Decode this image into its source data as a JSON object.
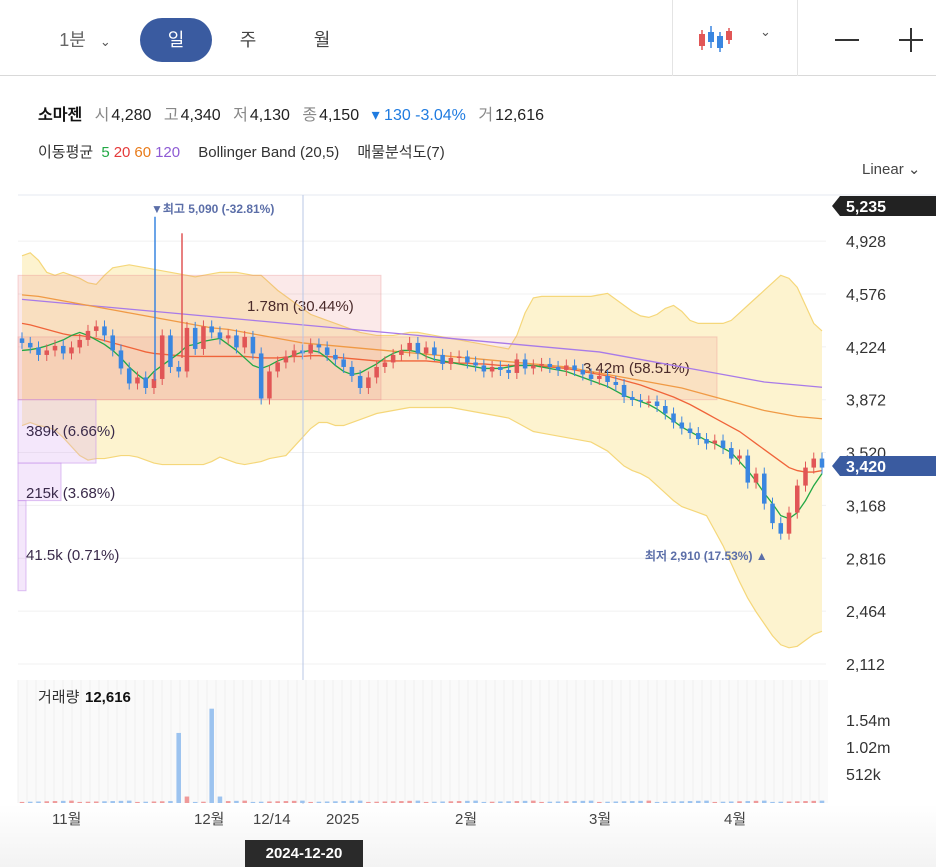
{
  "toolbar": {
    "interval": "1분",
    "periods": [
      "일",
      "주",
      "월"
    ],
    "active_period": "일",
    "chart_type_icon": "candlestick-icon",
    "zoom_out_icon": "minus-icon",
    "zoom_in_icon": "plus-icon"
  },
  "quote": {
    "name": "소마젠",
    "open_label": "시",
    "open": "4,280",
    "high_label": "고",
    "high": "4,340",
    "low_label": "저",
    "low": "4,130",
    "close_label": "종",
    "close": "4,150",
    "change": "▾ 130 -3.04%",
    "volume_label": "거",
    "volume": "12,616"
  },
  "indicators": {
    "ma_label": "이동평균",
    "ma5": "5",
    "ma20": "20",
    "ma60": "60",
    "ma120": "120",
    "bollinger": "Bollinger Band (20,5)",
    "volume_profile": "매물분석도(7)"
  },
  "scale_label": "Linear",
  "colors": {
    "up": "#e15656",
    "down": "#3a86e0",
    "ma5": "#22a845",
    "ma20": "#f0643a",
    "ma60": "#f09a45",
    "ma120": "#a87ae8",
    "band": "#fdf3cf",
    "band_line": "#f5d77a",
    "price_tag": "#3a5ba0",
    "crosshair": "#b9c7e6"
  },
  "chart_data": {
    "type": "candlestick",
    "ylim": [
      2112,
      5235
    ],
    "y_ticks": [
      "4,928",
      "4,576",
      "4,224",
      "3,872",
      "3,520",
      "3,168",
      "2,816",
      "2,464",
      "2,112"
    ],
    "current_high_tag": "5,235",
    "current_price_tag": "3,420",
    "x_labels": [
      "11월",
      "12월",
      "12/14",
      "2025",
      "2월",
      "3월",
      "4월"
    ],
    "crosshair_date": "2024-12-20",
    "max_annotation": "▼최고 5,090 (-32.81%)",
    "min_annotation": "최저 2,910 (17.53%) ▲",
    "volume_profile": [
      {
        "label": "1.78m (30.44%)",
        "price_from": 3872,
        "price_to": 4700
      },
      {
        "label": "3.42m (58.51%)",
        "price_from": 3872,
        "price_to": 4290
      },
      {
        "label": "389k (6.66%)",
        "price_from": 3450,
        "price_to": 3872
      },
      {
        "label": "215k (3.68%)",
        "price_from": 3200,
        "price_to": 3450
      },
      {
        "label": "41.5k (0.71%)",
        "price_from": 2600,
        "price_to": 3200
      }
    ],
    "closes": [
      4250,
      4220,
      4170,
      4200,
      4230,
      4180,
      4220,
      4270,
      4330,
      4360,
      4300,
      4200,
      4080,
      3980,
      4020,
      3950,
      4010,
      4300,
      4090,
      4060,
      4350,
      4210,
      4360,
      4320,
      4280,
      4300,
      4220,
      4290,
      4180,
      3880,
      4060,
      4120,
      4160,
      4200,
      4180,
      4240,
      4220,
      4170,
      4140,
      4090,
      4030,
      3950,
      4020,
      4090,
      4120,
      4170,
      4200,
      4250,
      4180,
      4220,
      4170,
      4110,
      4150,
      4160,
      4120,
      4100,
      4060,
      4090,
      4070,
      4050,
      4140,
      4080,
      4100,
      4110,
      4090,
      4070,
      4100,
      4070,
      4040,
      4010,
      4030,
      3990,
      3970,
      3890,
      3870,
      3860,
      3860,
      3830,
      3780,
      3720,
      3680,
      3650,
      3610,
      3580,
      3600,
      3550,
      3480,
      3500,
      3320,
      3380,
      3180,
      3050,
      2980,
      3120,
      3300,
      3420,
      3480,
      3420
    ],
    "ma5": [
      4200,
      4205,
      4215,
      4230,
      4250,
      4270,
      4300,
      4320,
      4300,
      4270,
      4240,
      4200,
      4150,
      4090,
      4040,
      4000,
      4060,
      4100,
      4140,
      4180,
      4230,
      4240,
      4260,
      4270,
      4280,
      4240,
      4200,
      4150,
      4100,
      4080,
      4100,
      4130,
      4150,
      4170,
      4190,
      4200,
      4190,
      4150,
      4100,
      4060,
      4040,
      4050,
      4080,
      4110,
      4150,
      4180,
      4200,
      4200,
      4190,
      4160,
      4140,
      4130,
      4120,
      4110,
      4100,
      4090,
      4080,
      4080,
      4080,
      4090,
      4100,
      4100,
      4100,
      4090,
      4080,
      4070,
      4060,
      4040,
      4020,
      4000,
      3980,
      3960,
      3930,
      3900,
      3880,
      3860,
      3840,
      3810,
      3770,
      3730,
      3690,
      3660,
      3630,
      3600,
      3580,
      3550,
      3520,
      3460,
      3400,
      3330,
      3250,
      3180,
      3100,
      3080,
      3120,
      3200,
      3300,
      3380
    ],
    "ma20": [
      4380,
      4370,
      4355,
      4340,
      4325,
      4310,
      4300,
      4300,
      4290,
      4280,
      4265,
      4250,
      4235,
      4220,
      4205,
      4190,
      4180,
      4175,
      4170,
      4165,
      4160,
      4160,
      4160,
      4160,
      4160,
      4160,
      4160,
      4160,
      4155,
      4150,
      4150,
      4150,
      4155,
      4160,
      4160,
      4165,
      4165,
      4160,
      4155,
      4150,
      4145,
      4140,
      4135,
      4130,
      4130,
      4130,
      4130,
      4130,
      4130,
      4130,
      4125,
      4120,
      4120,
      4115,
      4115,
      4110,
      4110,
      4105,
      4100,
      4100,
      4100,
      4100,
      4100,
      4095,
      4090,
      4085,
      4080,
      4070,
      4060,
      4050,
      4040,
      4030,
      4015,
      4000,
      3985,
      3970,
      3950,
      3930,
      3910,
      3890,
      3865,
      3840,
      3810,
      3780,
      3750,
      3720,
      3690,
      3660,
      3620,
      3580,
      3540,
      3500,
      3460,
      3420,
      3400,
      3390,
      3390,
      3400
    ],
    "ma60": [
      4570,
      4565,
      4560,
      4550,
      4540,
      4530,
      4520,
      4510,
      4500,
      4490,
      4480,
      4470,
      4460,
      4450,
      4440,
      4430,
      4420,
      4410,
      4400,
      4390,
      4380,
      4370,
      4360,
      4350,
      4345,
      4340,
      4330,
      4320,
      4310,
      4300,
      4290,
      4280,
      4270,
      4260,
      4250,
      4245,
      4240,
      4235,
      4230,
      4225,
      4220,
      4215,
      4210,
      4205,
      4200,
      4195,
      4190,
      4185,
      4180,
      4175,
      4170,
      4165,
      4160,
      4155,
      4150,
      4145,
      4140,
      4135,
      4130,
      4125,
      4120,
      4115,
      4110,
      4105,
      4100,
      4095,
      4090,
      4080,
      4070,
      4060,
      4050,
      4040,
      4030,
      4020,
      4010,
      4000,
      3990,
      3980,
      3970,
      3960,
      3950,
      3935,
      3920,
      3905,
      3890,
      3875,
      3860,
      3845,
      3830,
      3815,
      3800,
      3790,
      3780,
      3770,
      3760,
      3755,
      3750,
      3745
    ],
    "ma120": [
      4540,
      4535,
      4530,
      4525,
      4520,
      4515,
      4510,
      4505,
      4500,
      4495,
      4490,
      4485,
      4480,
      4475,
      4470,
      4465,
      4460,
      4455,
      4450,
      4445,
      4440,
      4435,
      4430,
      4425,
      4420,
      4415,
      4410,
      4405,
      4400,
      4395,
      4390,
      4385,
      4380,
      4375,
      4370,
      4365,
      4360,
      4355,
      4350,
      4345,
      4340,
      4335,
      4330,
      4325,
      4320,
      4315,
      4310,
      4305,
      4300,
      4295,
      4290,
      4285,
      4280,
      4275,
      4270,
      4265,
      4260,
      4255,
      4250,
      4245,
      4240,
      4235,
      4230,
      4225,
      4220,
      4215,
      4210,
      4205,
      4200,
      4195,
      4190,
      4180,
      4170,
      4160,
      4150,
      4140,
      4130,
      4120,
      4110,
      4100,
      4090,
      4080,
      4070,
      4060,
      4050,
      4040,
      4030,
      4020,
      4010,
      4000,
      3990,
      3985,
      3980,
      3975,
      3970,
      3965,
      3960,
      3955
    ],
    "band_upper": [
      4830,
      4850,
      4800,
      4720,
      4700,
      4720,
      4700,
      4680,
      4650,
      4640,
      4700,
      4750,
      4760,
      4770,
      4760,
      4750,
      4740,
      4730,
      4720,
      4710,
      4700,
      4690,
      4700,
      4710,
      4720,
      4720,
      4720,
      4710,
      4700,
      4700,
      4650,
      4600,
      4560,
      4520,
      4480,
      4440,
      4420,
      4400,
      4380,
      4360,
      4340,
      4320,
      4310,
      4300,
      4300,
      4300,
      4310,
      4320,
      4320,
      4310,
      4300,
      4290,
      4280,
      4270,
      4260,
      4250,
      4240,
      4230,
      4220,
      4210,
      4300,
      4450,
      4550,
      4560,
      4560,
      4560,
      4560,
      4560,
      4560,
      4560,
      4570,
      4580,
      4540,
      4500,
      4460,
      4430,
      4420,
      4440,
      4480,
      4500,
      4460,
      4400,
      4380,
      4380,
      4380,
      4380,
      4400,
      4450,
      4500,
      4550,
      4600,
      4650,
      4700,
      4680,
      4620,
      4500,
      4380,
      4330
    ],
    "band_lower": [
      3700,
      3720,
      3700,
      3690,
      3670,
      3620,
      3560,
      3500,
      3470,
      3480,
      3480,
      3490,
      3500,
      3500,
      3490,
      3470,
      3450,
      3440,
      3440,
      3440,
      3440,
      3440,
      3440,
      3460,
      3490,
      3470,
      3450,
      3440,
      3450,
      3460,
      3480,
      3490,
      3500,
      3560,
      3620,
      3680,
      3720,
      3720,
      3700,
      3700,
      3720,
      3740,
      3760,
      3780,
      3790,
      3800,
      3810,
      3820,
      3820,
      3820,
      3820,
      3820,
      3820,
      3810,
      3800,
      3790,
      3780,
      3770,
      3760,
      3750,
      3720,
      3690,
      3660,
      3650,
      3640,
      3630,
      3620,
      3610,
      3600,
      3590,
      3560,
      3530,
      3480,
      3430,
      3400,
      3380,
      3350,
      3300,
      3250,
      3200,
      3160,
      3140,
      3120,
      3100,
      3000,
      2900,
      2780,
      2660,
      2550,
      2460,
      2380,
      2300,
      2240,
      2220,
      2230,
      2270,
      2310,
      2330
    ],
    "volume_axis": [
      "1.54m",
      "1.02m",
      "512k"
    ],
    "volume_label": "거래량",
    "volume_value": "12,616"
  }
}
